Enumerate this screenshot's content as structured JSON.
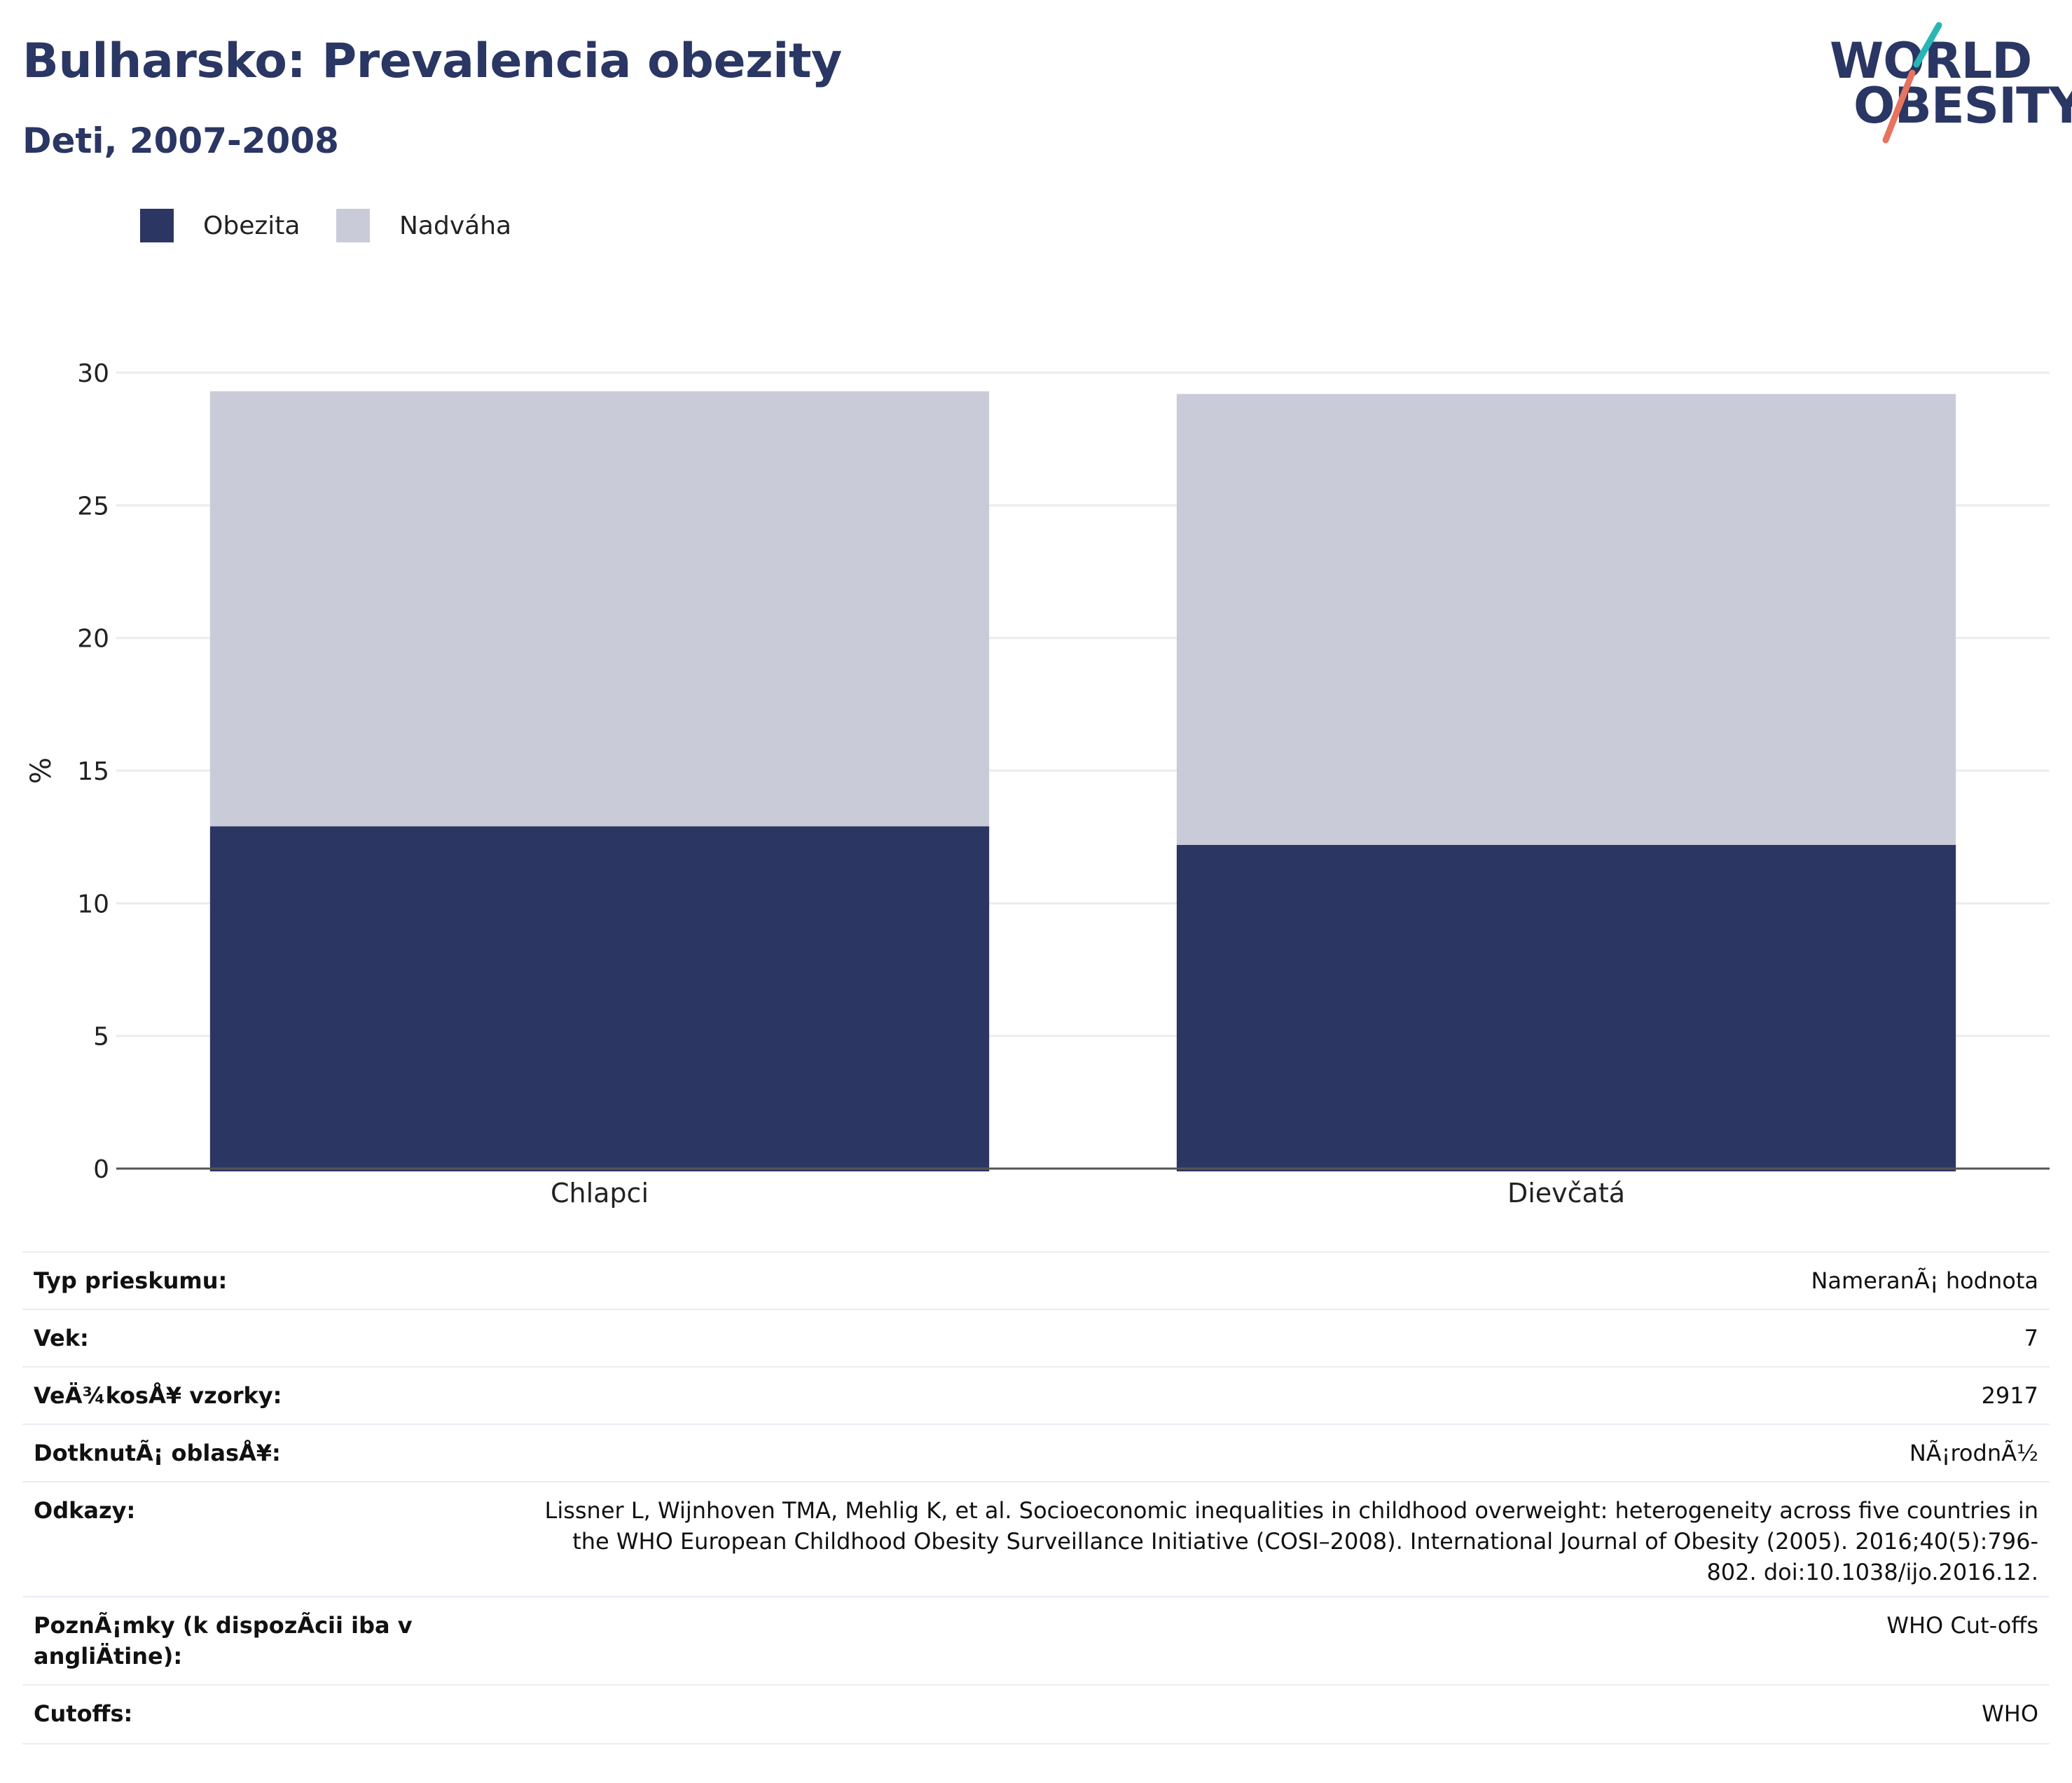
{
  "header": {
    "title": "Bulharsko: Prevalencia obezity",
    "subtitle": "Deti, 2007-2008"
  },
  "logo": {
    "line1": "WORLD",
    "line2": "OBESITY",
    "colors": {
      "teal": "#2ab5b5",
      "coral": "#e8735f",
      "navy": "#2a3663"
    }
  },
  "colors": {
    "obesity": "#2b3663",
    "overweight": "#c9ccd8",
    "grid": "#ececf0",
    "axis": "#555555"
  },
  "legend": {
    "items": [
      {
        "label": "Obezita",
        "color": "#2b3663"
      },
      {
        "label": "Nadváha",
        "color": "#c9ccd8"
      }
    ]
  },
  "chart_data": {
    "type": "bar",
    "stacked": true,
    "categories": [
      "Chlapci",
      "Dievčatá"
    ],
    "series": [
      {
        "name": "Obezita",
        "values": [
          12.9,
          12.2
        ]
      },
      {
        "name": "Nadváha",
        "values": [
          16.4,
          17.0
        ]
      }
    ],
    "ylabel": "%",
    "ylim": [
      0,
      30
    ],
    "yticks": [
      0,
      5,
      10,
      15,
      20,
      25,
      30
    ],
    "grid": true,
    "legend_position": "top-left"
  },
  "info": {
    "rows": [
      {
        "key": "Typ prieskumu:",
        "value": "NameranÃ¡ hodnota"
      },
      {
        "key": "Vek:",
        "value": "7"
      },
      {
        "key": "VeÄ¾kosÅ¥ vzorky:",
        "value": "2917"
      },
      {
        "key": "DotknutÃ¡ oblasÅ¥:",
        "value": "NÃ¡rodnÃ½"
      },
      {
        "key": "Odkazy:",
        "value": "Lissner L, Wijnhoven TMA, Mehlig K, et al. Socioeconomic inequalities in childhood overweight: heterogeneity across five countries in the WHO European Childhood Obesity Surveillance Initiative (COSI–2008). International Journal of Obesity (2005). 2016;40(5):796-802. doi:10.1038/ijo.2016.12."
      },
      {
        "key": "PoznÃ¡mky (k dispozÃcii iba v angliÄ\btine):",
        "value": "WHO Cut-offs"
      },
      {
        "key": "Cutoffs:",
        "value": "WHO"
      }
    ]
  }
}
